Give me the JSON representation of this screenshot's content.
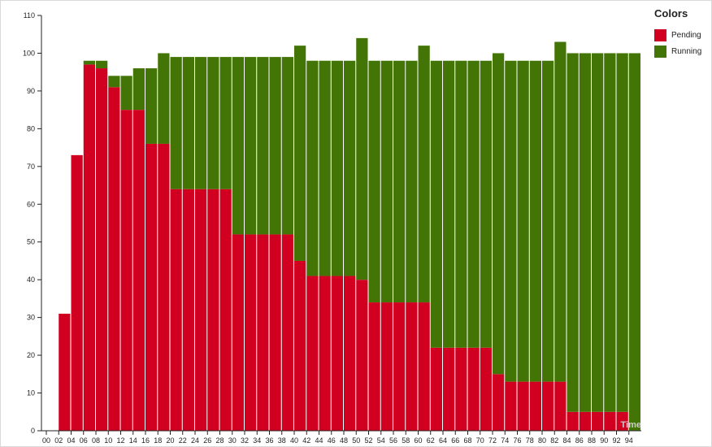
{
  "chart_data": {
    "type": "bar",
    "stacked": true,
    "title": "",
    "xlabel": "Time",
    "ylabel": "",
    "ylim": [
      0,
      110
    ],
    "yticks": [
      0,
      10,
      20,
      30,
      40,
      50,
      60,
      70,
      80,
      90,
      100,
      110
    ],
    "categories": [
      "00",
      "02",
      "04",
      "06",
      "08",
      "10",
      "12",
      "14",
      "16",
      "18",
      "20",
      "22",
      "24",
      "26",
      "28",
      "30",
      "32",
      "34",
      "36",
      "38",
      "40",
      "42",
      "44",
      "46",
      "48",
      "50",
      "52",
      "54",
      "56",
      "58",
      "60",
      "62",
      "64",
      "66",
      "68",
      "70",
      "72",
      "74",
      "76",
      "78",
      "80",
      "82",
      "84",
      "86",
      "88",
      "90",
      "92",
      "94"
    ],
    "series": [
      {
        "name": "Pending",
        "color": "#d10020",
        "values": [
          0,
          31,
          73,
          97,
          96,
          91,
          85,
          85,
          76,
          76,
          64,
          64,
          64,
          64,
          64,
          52,
          52,
          52,
          52,
          52,
          45,
          41,
          41,
          41,
          41,
          40,
          34,
          34,
          34,
          34,
          34,
          22,
          22,
          22,
          22,
          22,
          15,
          13,
          13,
          13,
          13,
          13,
          5,
          5,
          5,
          5,
          5,
          0
        ]
      },
      {
        "name": "Running",
        "color": "#427505",
        "values": [
          0,
          0,
          0,
          1,
          2,
          3,
          9,
          11,
          20,
          24,
          35,
          35,
          35,
          35,
          35,
          47,
          47,
          47,
          47,
          47,
          57,
          57,
          57,
          57,
          57,
          64,
          64,
          64,
          64,
          64,
          68,
          76,
          76,
          76,
          76,
          76,
          85,
          85,
          85,
          85,
          85,
          90,
          95,
          95,
          95,
          95,
          95,
          100
        ]
      }
    ],
    "legend": {
      "title": "Colors",
      "position": "right"
    }
  }
}
